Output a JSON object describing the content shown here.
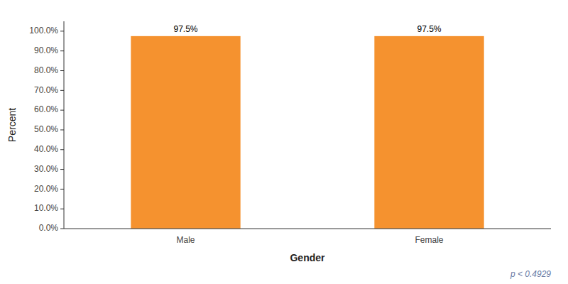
{
  "chart_data": {
    "type": "bar",
    "categories": [
      "Male",
      "Female"
    ],
    "values": [
      97.5,
      97.5
    ],
    "value_labels": [
      "97.5%",
      "97.5%"
    ],
    "data_labels": true,
    "color": "#F5922F",
    "xlabel": "Gender",
    "ylabel": "Percent",
    "ylim": [
      0,
      105
    ],
    "yticks": [
      {
        "value": 0,
        "label": "0.0%"
      },
      {
        "value": 10,
        "label": "10.0%"
      },
      {
        "value": 20,
        "label": "20.0%"
      },
      {
        "value": 30,
        "label": "30.0%"
      },
      {
        "value": 40,
        "label": "40.0%"
      },
      {
        "value": 50,
        "label": "50.0%"
      },
      {
        "value": 60,
        "label": "60.0%"
      },
      {
        "value": 70,
        "label": "70.0%"
      },
      {
        "value": 80,
        "label": "80.0%"
      },
      {
        "value": 90,
        "label": "90.0%"
      },
      {
        "value": 100,
        "label": "100.0%"
      }
    ],
    "grid": false,
    "annotations": [
      "p < 0.4929"
    ]
  }
}
